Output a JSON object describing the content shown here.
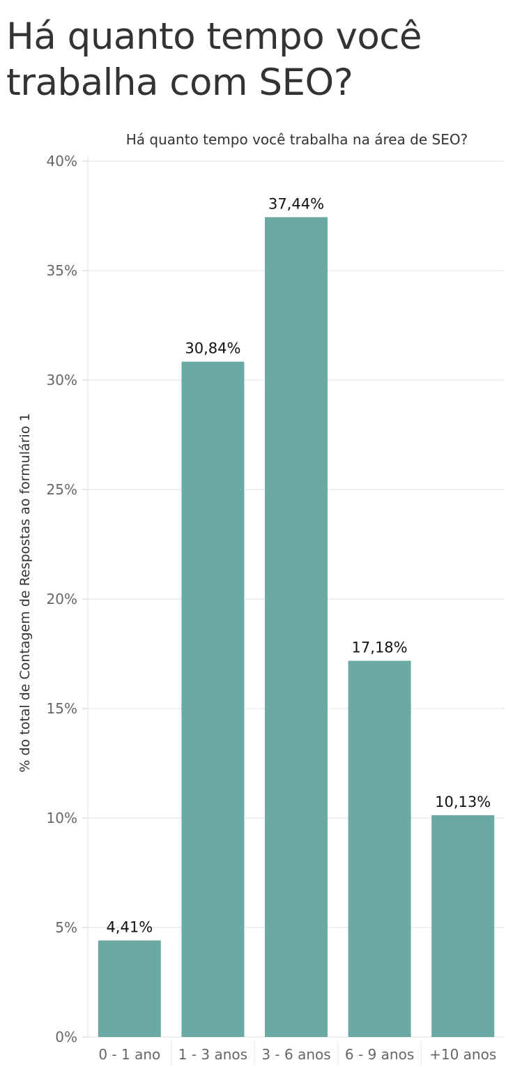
{
  "page": {
    "title": "Há quanto tempo você trabalha com SEO?"
  },
  "chart_data": {
    "type": "bar",
    "title": "Há quanto tempo você trabalha na área de SEO?",
    "xlabel": "",
    "ylabel": "% do total de Contagem de Respostas ao formulário 1",
    "categories": [
      "0 - 1 ano",
      "1 - 3 anos",
      "3 - 6 anos",
      "6 - 9 anos",
      "+10 anos"
    ],
    "values": [
      4.41,
      30.84,
      37.44,
      17.18,
      10.13
    ],
    "data_labels": [
      "4,41%",
      "30,84%",
      "37,44%",
      "17,18%",
      "10,13%"
    ],
    "ylim": [
      0,
      40
    ],
    "yticks": [
      0,
      5,
      10,
      15,
      20,
      25,
      30,
      35,
      40
    ],
    "ytick_labels": [
      "0%",
      "5%",
      "10%",
      "15%",
      "20%",
      "25%",
      "30%",
      "35%",
      "40%"
    ],
    "grid": true,
    "bar_color": "#6aa9a4"
  }
}
